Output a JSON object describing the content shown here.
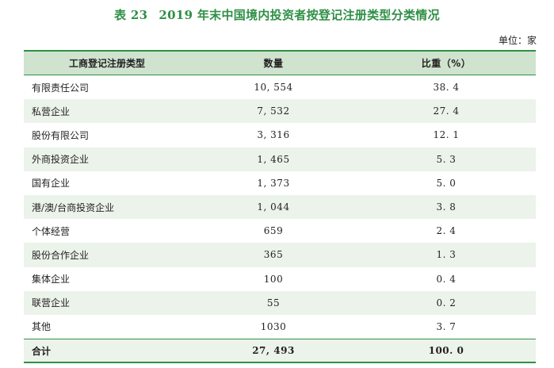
{
  "title": {
    "number": "表 23",
    "text": "2019 年末中国境内投资者按登记注册类型分类情况"
  },
  "unit": "单位：家",
  "table": {
    "headers": [
      "工商登记注册类型",
      "数量",
      "比重（%）"
    ],
    "rows": [
      {
        "type": "有限责任公司",
        "count": "10, 554",
        "share": "38. 4"
      },
      {
        "type": "私营企业",
        "count": "7, 532",
        "share": "27. 4"
      },
      {
        "type": "股份有限公司",
        "count": "3, 316",
        "share": "12. 1"
      },
      {
        "type": "外商投资企业",
        "count": "1, 465",
        "share": "5. 3"
      },
      {
        "type": "国有企业",
        "count": "1, 373",
        "share": "5. 0"
      },
      {
        "type": "港/澳/台商投资企业",
        "count": "1, 044",
        "share": "3. 8"
      },
      {
        "type": "个体经营",
        "count": "659",
        "share": "2. 4"
      },
      {
        "type": "股份合作企业",
        "count": "365",
        "share": "1. 3"
      },
      {
        "type": "集体企业",
        "count": "100",
        "share": "0. 4"
      },
      {
        "type": "联营企业",
        "count": "55",
        "share": "0. 2"
      },
      {
        "type": "其他",
        "count": "1030",
        "share": "3. 7"
      }
    ],
    "total": {
      "type": "合计",
      "count": "27, 493",
      "share": "100. 0"
    }
  }
}
